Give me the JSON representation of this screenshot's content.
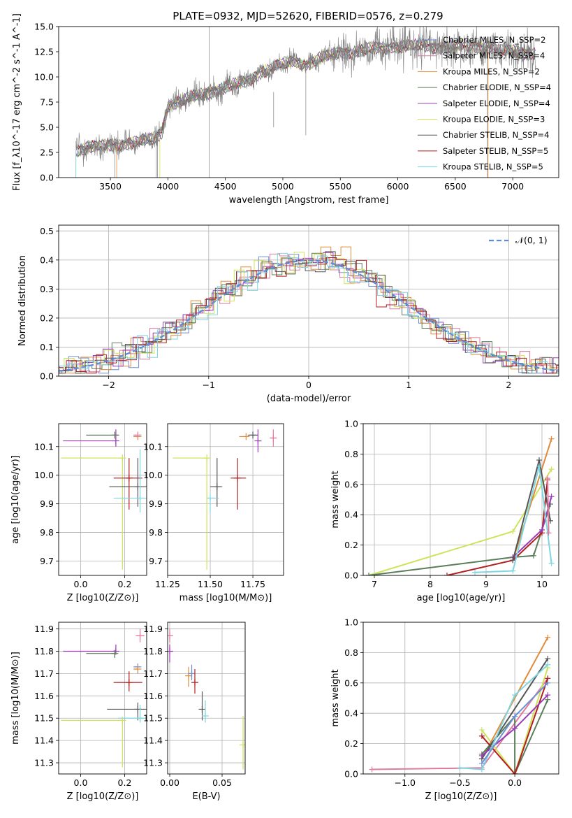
{
  "title": "PLATE=0932, MJD=52620, FIBERID=0576, z=0.279",
  "colors": {
    "chabrier_miles": "#6f8fd4",
    "salpeter_miles": "#e07a9e",
    "kroupa_miles": "#e08a3c",
    "chabrier_elodie": "#5a7d5a",
    "salpeter_elodie": "#9b3bb5",
    "kroupa_elodie": "#cfe35a",
    "chabrier_stelib": "#555555",
    "salpeter_stelib": "#b21f1f",
    "kroupa_stelib": "#7fd6e0"
  },
  "chart_data": [
    {
      "id": "spectrum",
      "type": "line",
      "xlabel": "wavelength [Angstrom, rest frame]",
      "ylabel": "Flux [f_λ10^-17 erg cm^-2 s^-1 A^-1]",
      "xlim": [
        3050,
        7400
      ],
      "ylim": [
        0,
        15
      ],
      "xticks": [
        3500,
        4000,
        4500,
        5000,
        5500,
        6000,
        6500,
        7000
      ],
      "yticks": [
        0.0,
        2.5,
        5.0,
        7.5,
        10.0,
        12.5,
        15.0
      ],
      "ytick_labels": [
        "0.0",
        "2.5",
        "5.0",
        "7.5",
        "10.0",
        "12.5",
        "15.0"
      ],
      "grid": false,
      "legend": "upper right",
      "legend_entries": [
        "Chabrier MILES, N_SSP=2",
        "Salpeter MILES, N_SSP=4",
        "Kroupa MILES, N_SSP=2",
        "Chabrier ELODIE, N_SSP=4",
        "Salpeter ELODIE, N_SSP=4",
        "Kroupa ELODIE, N_SSP=3",
        "Chabrier STELIB, N_SSP=4",
        "Salpeter STELIB, N_SSP=5",
        "Kroupa STELIB, N_SSP=5"
      ],
      "data_continuum": {
        "x": [
          3200,
          3300,
          3400,
          3500,
          3600,
          3700,
          3800,
          3900,
          3950,
          4000,
          4100,
          4200,
          4300,
          4400,
          4500,
          4600,
          4700,
          4800,
          4900,
          5000,
          5100,
          5200,
          5300,
          5400,
          5500,
          5600,
          5700,
          5800,
          5900,
          6000,
          6100,
          6200,
          6300,
          6400,
          6500,
          6600,
          6700,
          6800,
          6900,
          7000,
          7100,
          7200
        ],
        "y": [
          2.7,
          3.0,
          3.1,
          3.2,
          3.3,
          3.5,
          3.6,
          4.0,
          4.6,
          7.2,
          7.5,
          8.0,
          8.3,
          8.6,
          8.9,
          9.3,
          9.6,
          10.4,
          10.8,
          11.3,
          11.6,
          11.2,
          11.7,
          12.1,
          12.5,
          12.4,
          12.6,
          12.9,
          12.9,
          13.0,
          13.0,
          13.2,
          13.0,
          12.9,
          13.0,
          13.1,
          13.0,
          12.9,
          12.6,
          12.6,
          12.4,
          12.3
        ]
      }
    },
    {
      "id": "residuals",
      "type": "line",
      "xlabel": "(data-model)/error",
      "ylabel": "Normed distribution",
      "xlim": [
        -2.5,
        2.5
      ],
      "ylim": [
        0,
        0.52
      ],
      "xticks": [
        -2,
        -1,
        0,
        1,
        2
      ],
      "xtick_labels": [
        "−2",
        "−1",
        "0",
        "1",
        "2"
      ],
      "yticks": [
        0.0,
        0.1,
        0.2,
        0.3,
        0.4,
        0.5
      ],
      "ytick_labels": [
        "0.0",
        "0.1",
        "0.2",
        "0.3",
        "0.4",
        "0.5"
      ],
      "grid": true,
      "legend": "upper right",
      "series": [
        {
          "name": "𝒩(0, 1)",
          "mean": 0,
          "sigma": 1
        }
      ]
    },
    {
      "id": "age_vs_Z",
      "type": "scatter",
      "xlabel": "Z [log10(Z/Z⊙)]",
      "ylabel": "age [log10(age/yr)]",
      "xlim": [
        -0.1,
        0.3
      ],
      "ylim": [
        9.65,
        10.18
      ],
      "xticks": [
        0.0,
        0.2
      ],
      "xtick_labels": [
        "0.0",
        "0.2"
      ],
      "yticks": [
        9.7,
        9.8,
        9.9,
        10.0,
        10.1
      ],
      "ytick_labels": [
        "9.7",
        "9.8",
        "9.9",
        "10.0",
        "10.1"
      ],
      "grid": true,
      "points": [
        {
          "model": "chabrier_elodie",
          "x": 0.155,
          "xerr": [
            0.13,
            0.02
          ],
          "y": 10.14,
          "yerr": [
            0.0,
            0.0
          ]
        },
        {
          "model": "salpeter_elodie",
          "x": 0.16,
          "xerr": [
            0.24,
            0.0
          ],
          "y": 10.12,
          "yerr": [
            0.02,
            0.04
          ]
        },
        {
          "model": "kroupa_miles",
          "x": 0.26,
          "xerr": [
            0.02,
            0.0
          ],
          "y": 10.135,
          "yerr": [
            0.0,
            0.0
          ]
        },
        {
          "model": "salpeter_miles",
          "x": 0.26,
          "xerr": [
            0.02,
            0.01
          ],
          "y": 10.14,
          "yerr": [
            0.0,
            0.0
          ]
        },
        {
          "model": "kroupa_elodie",
          "x": 0.19,
          "xerr": [
            0.28,
            0.0
          ],
          "y": 10.06,
          "yerr": [
            0.39,
            0.0
          ]
        },
        {
          "model": "salpeter_stelib",
          "x": 0.22,
          "xerr": [
            0.07,
            0.06
          ],
          "y": 9.99,
          "yerr": [
            0.11,
            0.07
          ]
        },
        {
          "model": "chabrier_stelib",
          "x": 0.26,
          "xerr": [
            0.13,
            0.04
          ],
          "y": 9.96,
          "yerr": [
            0.07,
            0.1
          ]
        },
        {
          "model": "kroupa_stelib",
          "x": 0.27,
          "xerr": [
            0.12,
            0.03
          ],
          "y": 9.92,
          "yerr": [
            0.05,
            0.17
          ]
        }
      ]
    },
    {
      "id": "age_vs_mass",
      "type": "scatter",
      "xlabel": "mass [log10(M/M⊙)]",
      "ylabel": "",
      "xlim": [
        11.25,
        11.93
      ],
      "ylim": [
        9.65,
        10.18
      ],
      "xticks": [
        11.25,
        11.5,
        11.75
      ],
      "xtick_labels": [
        "11.25",
        "11.50",
        "11.75"
      ],
      "yticks": [
        9.7,
        9.8,
        9.9,
        10.0,
        10.1
      ],
      "ytick_labels": [
        "9.7",
        "9.8",
        "9.9",
        "10.0",
        "10.1"
      ],
      "grid": true,
      "points": [
        {
          "model": "kroupa_miles",
          "x": 11.71,
          "xerr": [
            0.04,
            0.0
          ],
          "y": 10.135,
          "yerr": [
            0.0,
            0.0
          ]
        },
        {
          "model": "chabrier_stelib",
          "x": 11.75,
          "xerr": [
            0.03,
            0.03
          ],
          "y": 10.14,
          "yerr": [
            0.0,
            0.0
          ]
        },
        {
          "model": "salpeter_elodie",
          "x": 11.78,
          "xerr": [
            0.0,
            0.02
          ],
          "y": 10.12,
          "yerr": [
            0.04,
            0.04
          ]
        },
        {
          "model": "salpeter_miles",
          "x": 11.87,
          "xerr": [
            0.02,
            0.02
          ],
          "y": 10.13,
          "yerr": [
            0.03,
            0.03
          ]
        },
        {
          "model": "kroupa_elodie",
          "x": 11.48,
          "xerr": [
            0.2,
            0.0
          ],
          "y": 10.06,
          "yerr": [
            0.39,
            0.0
          ]
        },
        {
          "model": "chabrier_stelib",
          "x": 11.54,
          "xerr": [
            0.04,
            0.03
          ],
          "y": 9.96,
          "yerr": [
            0.07,
            0.1
          ]
        },
        {
          "model": "salpeter_stelib",
          "x": 11.66,
          "xerr": [
            0.04,
            0.05
          ],
          "y": 9.99,
          "yerr": [
            0.11,
            0.07
          ]
        },
        {
          "model": "kroupa_stelib",
          "x": 11.5,
          "xerr": [
            0.02,
            0.05
          ],
          "y": 9.92,
          "yerr": [
            0.05,
            0.0
          ]
        }
      ]
    },
    {
      "id": "mass_weight_vs_age",
      "type": "line",
      "xlabel": "age [log10(age/yr)]",
      "ylabel": "mass weight",
      "xlim": [
        6.8,
        10.3
      ],
      "ylim": [
        0,
        1
      ],
      "xticks": [
        7,
        8,
        9,
        10
      ],
      "xtick_labels": [
        "7",
        "8",
        "9",
        "10"
      ],
      "yticks": [
        0,
        0.2,
        0.4,
        0.6,
        0.8,
        1.0
      ],
      "ytick_labels": [
        "0.0",
        "0.2",
        "0.4",
        "0.6",
        "0.8",
        "1.0"
      ],
      "grid": true,
      "series": [
        {
          "model": "kroupa_elodie",
          "x": [
            6.9,
            9.48,
            10.17
          ],
          "y": [
            0.0,
            0.29,
            0.7
          ]
        },
        {
          "model": "chabrier_elodie",
          "x": [
            6.9,
            9.48,
            9.85,
            10.15
          ],
          "y": [
            0.0,
            0.12,
            0.13,
            0.47
          ]
        },
        {
          "model": "kroupa_miles",
          "x": [
            9.48,
            10.17
          ],
          "y": [
            0.1,
            0.9
          ]
        },
        {
          "model": "salpeter_stelib",
          "x": [
            8.3,
            9.48,
            10.0,
            10.1
          ],
          "y": [
            0.0,
            0.1,
            0.28,
            0.63
          ]
        },
        {
          "model": "salpeter_elodie",
          "x": [
            9.48,
            10.0,
            10.17
          ],
          "y": [
            0.12,
            0.3,
            0.52
          ]
        },
        {
          "model": "chabrier_stelib",
          "x": [
            9.48,
            9.95,
            10.15
          ],
          "y": [
            0.1,
            0.76,
            0.36
          ]
        },
        {
          "model": "kroupa_stelib",
          "x": [
            8.8,
            9.48,
            9.95,
            10.17
          ],
          "y": [
            0.02,
            0.03,
            0.72,
            0.08
          ]
        },
        {
          "model": "salpeter_miles",
          "x": [
            10.1,
            10.12
          ],
          "y": [
            0.64,
            0.28
          ]
        }
      ]
    },
    {
      "id": "mass_vs_Z",
      "type": "scatter",
      "xlabel": "Z [log10(Z/Z⊙)]",
      "ylabel": "mass [log10(M/M⊙)]",
      "xlim": [
        -0.1,
        0.3
      ],
      "ylim": [
        11.25,
        11.93
      ],
      "xticks": [
        0.0,
        0.2
      ],
      "xtick_labels": [
        "0.0",
        "0.2"
      ],
      "yticks": [
        11.3,
        11.4,
        11.5,
        11.6,
        11.7,
        11.8,
        11.9
      ],
      "ytick_labels": [
        "11.3",
        "11.4",
        "11.5",
        "11.6",
        "11.7",
        "11.8",
        "11.9"
      ],
      "grid": true,
      "points": [
        {
          "model": "salpeter_miles",
          "x": 0.27,
          "xerr": [
            0.02,
            0.02
          ],
          "y": 11.87,
          "yerr": [
            0.03,
            0.03
          ]
        },
        {
          "model": "salpeter_elodie",
          "x": 0.16,
          "xerr": [
            0.24,
            0.0
          ],
          "y": 11.8,
          "yerr": [
            0.01,
            0.03
          ]
        },
        {
          "model": "chabrier_elodie",
          "x": 0.155,
          "xerr": [
            0.13,
            0.0
          ],
          "y": 11.79,
          "yerr": [
            0.02,
            0.0
          ]
        },
        {
          "model": "chabrier_miles",
          "x": 0.26,
          "xerr": [
            0.02,
            0.01
          ],
          "y": 11.73,
          "yerr": [
            0.03,
            0.0
          ]
        },
        {
          "model": "kroupa_miles",
          "x": 0.26,
          "xerr": [
            0.02,
            0.0
          ],
          "y": 11.72,
          "yerr": [
            0.0,
            0.0
          ]
        },
        {
          "model": "salpeter_stelib",
          "x": 0.22,
          "xerr": [
            0.07,
            0.06
          ],
          "y": 11.66,
          "yerr": [
            0.04,
            0.05
          ]
        },
        {
          "model": "chabrier_stelib",
          "x": 0.26,
          "xerr": [
            0.14,
            0.04
          ],
          "y": 11.54,
          "yerr": [
            0.05,
            0.03
          ]
        },
        {
          "model": "kroupa_stelib",
          "x": 0.27,
          "xerr": [
            0.1,
            0.03
          ],
          "y": 11.5,
          "yerr": [
            0.02,
            0.06
          ]
        },
        {
          "model": "kroupa_elodie",
          "x": 0.19,
          "xerr": [
            0.28,
            0.0
          ],
          "y": 11.49,
          "yerr": [
            0.21,
            0.0
          ]
        }
      ]
    },
    {
      "id": "mass_vs_ebv",
      "type": "scatter",
      "xlabel": "E(B-V)",
      "ylabel": "",
      "xlim": [
        -0.002,
        0.072
      ],
      "ylim": [
        11.25,
        11.93
      ],
      "xticks": [
        0.0,
        0.05
      ],
      "xtick_labels": [
        "0.00",
        "0.05"
      ],
      "yticks": [
        11.3,
        11.4,
        11.5,
        11.6,
        11.7,
        11.8,
        11.9
      ],
      "ytick_labels": [
        "11.3",
        "11.4",
        "11.5",
        "11.6",
        "11.7",
        "11.8",
        "11.9"
      ],
      "grid": true,
      "points": [
        {
          "model": "salpeter_miles",
          "x": 0.0,
          "y": 11.87,
          "yerr": [
            0.03,
            0.03
          ]
        },
        {
          "model": "salpeter_elodie",
          "x": 0.0,
          "y": 11.8,
          "yerr": [
            0.05,
            0.03
          ]
        },
        {
          "model": "kroupa_miles",
          "x": 0.018,
          "y": 11.69,
          "yerr": [
            0.05,
            0.04
          ]
        },
        {
          "model": "chabrier_miles",
          "x": 0.021,
          "y": 11.7,
          "yerr": [
            0.03,
            0.04
          ]
        },
        {
          "model": "salpeter_stelib",
          "x": 0.024,
          "y": 11.66,
          "yerr": [
            0.05,
            0.06
          ]
        },
        {
          "model": "chabrier_stelib",
          "x": 0.031,
          "y": 11.54,
          "yerr": [
            0.05,
            0.08
          ]
        },
        {
          "model": "kroupa_stelib",
          "x": 0.034,
          "y": 11.51,
          "yerr": [
            0.03,
            0.07
          ]
        },
        {
          "model": "kroupa_elodie",
          "x": 0.07,
          "y": 11.38,
          "yerr": [
            0.11,
            0.13
          ]
        }
      ]
    },
    {
      "id": "mass_weight_vs_Z",
      "type": "line",
      "xlabel": "Z [log10(Z/Z⊙)]",
      "ylabel": "mass weight",
      "xlim": [
        -1.38,
        0.4
      ],
      "ylim": [
        0,
        1
      ],
      "xticks": [
        -1.0,
        -0.5,
        0.0
      ],
      "xtick_labels": [
        "−1.0",
        "−0.5",
        "0.0"
      ],
      "yticks": [
        0,
        0.2,
        0.4,
        0.6,
        0.8,
        1.0
      ],
      "ytick_labels": [
        "0.0",
        "0.2",
        "0.4",
        "0.6",
        "0.8",
        "1.0"
      ],
      "grid": true,
      "series": [
        {
          "model": "salpeter_miles",
          "x": [
            -1.3,
            -0.3,
            0.3
          ],
          "y": [
            0.03,
            0.04,
            0.63
          ]
        },
        {
          "model": "kroupa_elodie",
          "x": [
            -0.3,
            0.0,
            0.3
          ],
          "y": [
            0.29,
            0.0,
            0.7
          ]
        },
        {
          "model": "kroupa_miles",
          "x": [
            -0.3,
            0.3
          ],
          "y": [
            0.1,
            0.9
          ]
        },
        {
          "model": "chabrier_elodie",
          "x": [
            -0.3,
            0.0,
            0.0,
            0.3
          ],
          "y": [
            0.13,
            0.38,
            0.0,
            0.49
          ]
        },
        {
          "model": "salpeter_stelib",
          "x": [
            -0.3,
            0.0,
            0.3
          ],
          "y": [
            0.25,
            0.0,
            0.63
          ]
        },
        {
          "model": "chabrier_stelib",
          "x": [
            -0.3,
            0.3
          ],
          "y": [
            0.1,
            0.76
          ]
        },
        {
          "model": "salpeter_elodie",
          "x": [
            -0.3,
            0.0,
            0.3
          ],
          "y": [
            0.12,
            0.3,
            0.52
          ]
        },
        {
          "model": "kroupa_stelib",
          "x": [
            -0.5,
            -0.3,
            0.0,
            0.3
          ],
          "y": [
            0.04,
            0.03,
            0.52,
            0.72
          ]
        },
        {
          "model": "chabrier_miles",
          "x": [
            -0.3,
            0.0,
            0.3
          ],
          "y": [
            0.07,
            0.38,
            0.6
          ]
        }
      ]
    }
  ]
}
